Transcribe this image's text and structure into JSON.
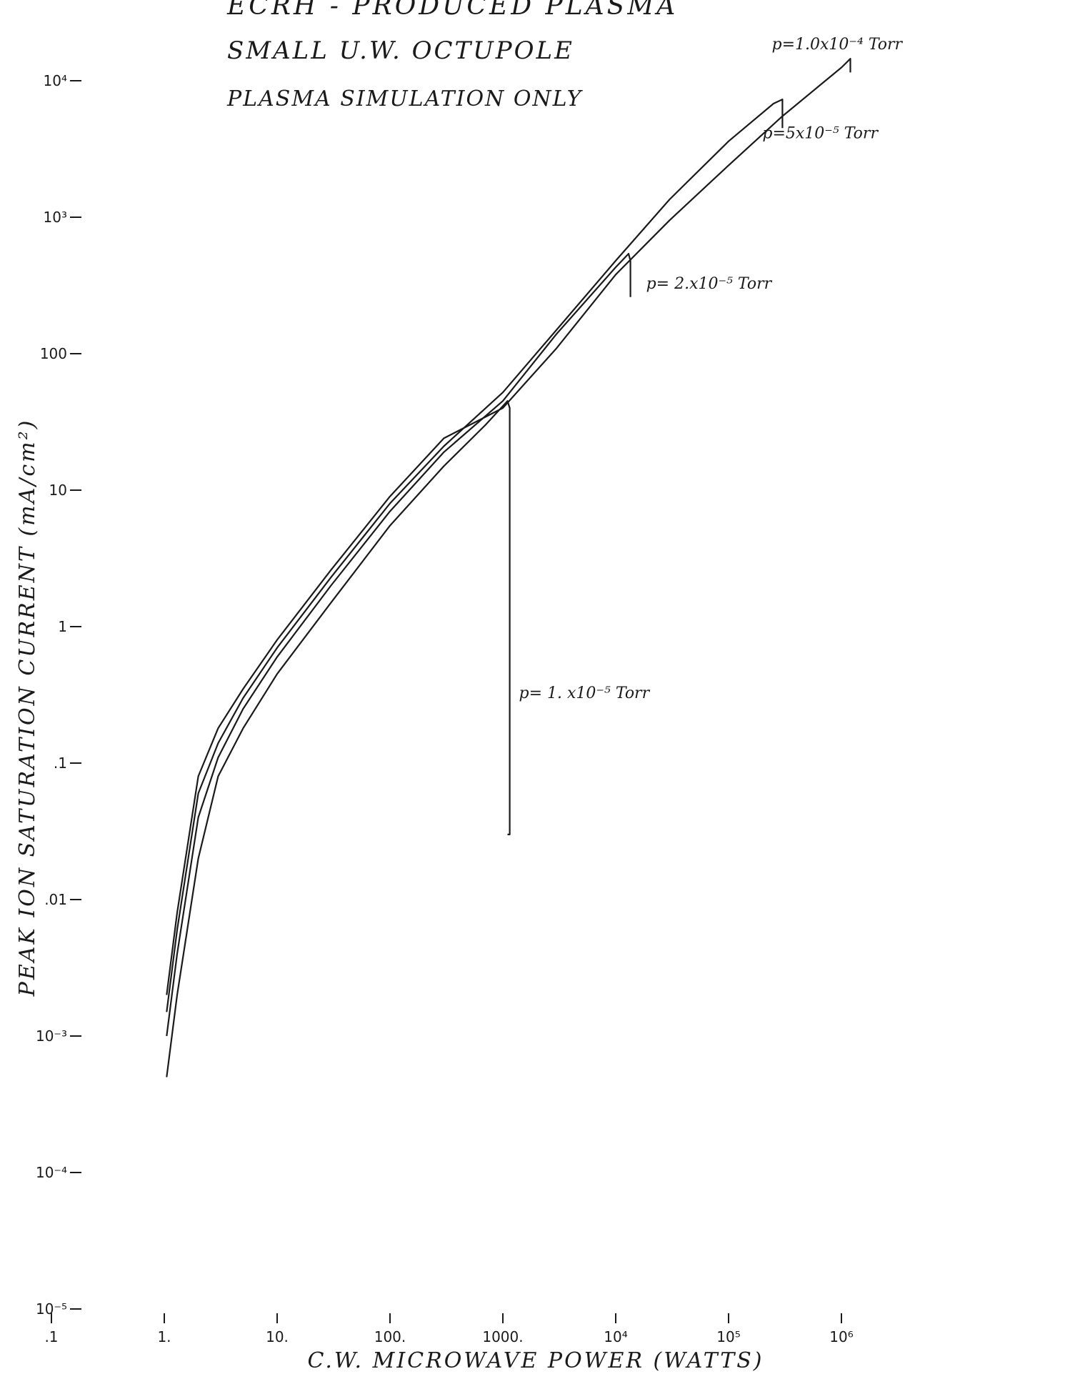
{
  "chart_data": {
    "type": "line",
    "title_lines": [
      "ECRH - PRODUCED PLASMA",
      "SMALL U.W. OCTUPOLE",
      "PLASMA SIMULATION ONLY"
    ],
    "xlabel": "C.W. MICROWAVE POWER (WATTS)",
    "ylabel": "PEAK ION SATURATION CURRENT (mA/cm²)",
    "x_scale": "log",
    "y_scale": "log",
    "xlim": [
      0.1,
      1000000
    ],
    "ylim": [
      1e-05,
      10000
    ],
    "x_ticks": [
      {
        "value": 0.1,
        "label": ".1"
      },
      {
        "value": 1,
        "label": "1."
      },
      {
        "value": 10,
        "label": "10."
      },
      {
        "value": 100,
        "label": "100."
      },
      {
        "value": 1000,
        "label": "1000."
      },
      {
        "value": 10000,
        "label": "10⁴"
      },
      {
        "value": 100000,
        "label": "10⁵"
      },
      {
        "value": 1000000,
        "label": "10⁶"
      }
    ],
    "y_ticks": [
      {
        "value": 1e-05,
        "label": "10⁻⁵"
      },
      {
        "value": 0.0001,
        "label": "10⁻⁴"
      },
      {
        "value": 0.001,
        "label": "10⁻³"
      },
      {
        "value": 0.01,
        "label": ".01"
      },
      {
        "value": 0.1,
        "label": ".1"
      },
      {
        "value": 1,
        "label": "1"
      },
      {
        "value": 10,
        "label": "10"
      },
      {
        "value": 100,
        "label": "100"
      },
      {
        "value": 1000,
        "label": "10³"
      },
      {
        "value": 10000,
        "label": "10⁴"
      }
    ],
    "grid": false,
    "series": [
      {
        "name": "p= 1. x10⁻⁵ Torr",
        "label_value": 0.3,
        "x": [
          1.05,
          1.3,
          2,
          3,
          5,
          10,
          30,
          100,
          300,
          700,
          1100,
          1150,
          1150,
          1100
        ],
        "y": [
          0.0005,
          0.002,
          0.02,
          0.08,
          0.18,
          0.45,
          1.5,
          5.5,
          15,
          30,
          45,
          40,
          0.03,
          0.03
        ]
      },
      {
        "name": "p= 2.x10⁻⁵ Torr",
        "label_value": 300,
        "x": [
          1.05,
          1.3,
          2,
          3,
          5,
          10,
          30,
          100,
          300,
          1000,
          3000,
          10000,
          13000,
          13500,
          13500
        ],
        "y": [
          0.001,
          0.004,
          0.04,
          0.11,
          0.25,
          0.6,
          2,
          7,
          19,
          45,
          140,
          430,
          540,
          480,
          260
        ]
      },
      {
        "name": "p=5x10⁻⁵ Torr",
        "label_value": 3800,
        "x": [
          1.05,
          1.3,
          2,
          3,
          5,
          10,
          30,
          100,
          300,
          1000,
          3000,
          10000,
          30000,
          100000,
          250000,
          300000,
          300000
        ],
        "y": [
          0.0015,
          0.006,
          0.06,
          0.14,
          0.3,
          0.7,
          2.3,
          8,
          21,
          52,
          150,
          480,
          1350,
          3600,
          6800,
          7300,
          4500
        ]
      },
      {
        "name": "p=1.0x10⁻⁴ Torr",
        "label_value": 17000,
        "x": [
          1.05,
          1.3,
          2,
          3,
          5,
          10,
          30,
          100,
          300,
          1000,
          3000,
          10000,
          30000,
          100000,
          300000,
          1000000,
          1200000,
          1200000
        ],
        "y": [
          0.002,
          0.008,
          0.08,
          0.18,
          0.35,
          0.8,
          2.6,
          9,
          24,
          40,
          110,
          380,
          950,
          2400,
          5500,
          12500,
          14500,
          11500
        ]
      }
    ]
  }
}
